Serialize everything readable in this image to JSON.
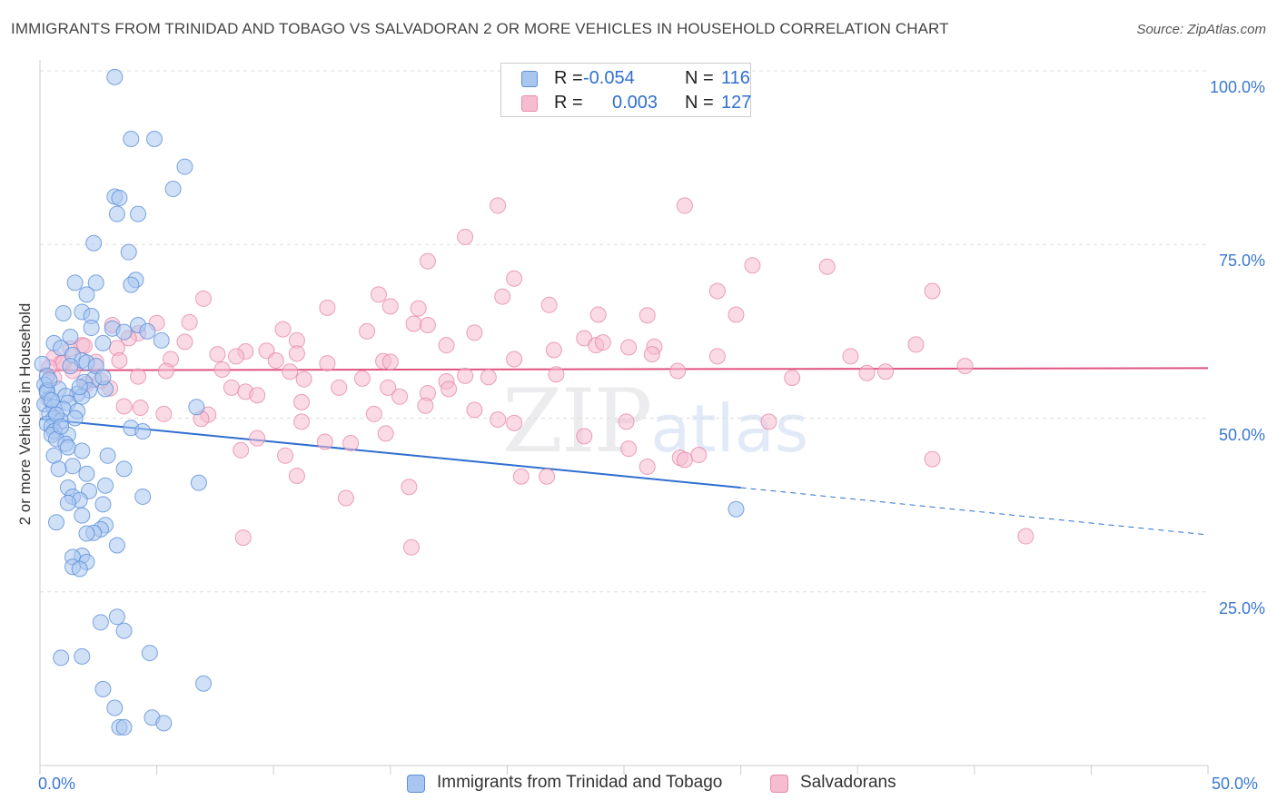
{
  "title": "IMMIGRANTS FROM TRINIDAD AND TOBAGO VS SALVADORAN 2 OR MORE VEHICLES IN HOUSEHOLD CORRELATION CHART",
  "source": "Source: ZipAtlas.com",
  "watermark": {
    "zip": "ZIP",
    "atlas": "atlas"
  },
  "legend": {
    "rows": [
      {
        "r_label": "R =",
        "r_value": "-0.054",
        "n_label": "N =",
        "n_value": "116"
      },
      {
        "r_label": "R =",
        "r_value": "0.003",
        "n_label": "N =",
        "n_value": "127"
      }
    ],
    "bottom": [
      "Immigrants from Trinidad and Tobago",
      "Salvadorans"
    ]
  },
  "colors": {
    "series1_fill": "#a9c6f0",
    "series1_stroke": "#5b8fd8",
    "series1_line": "#2f6fd0",
    "series2_fill": "#f6bcd0",
    "series2_stroke": "#e68aab",
    "series2_line": "#e0537f",
    "grid": "#dddddd",
    "tick_text": "#3a78d0"
  },
  "chart_data": {
    "type": "scatter",
    "title": "IMMIGRANTS FROM TRINIDAD AND TOBAGO VS SALVADORAN 2 OR MORE VEHICLES IN HOUSEHOLD CORRELATION CHART",
    "xlabel": "",
    "ylabel": "2 or more Vehicles in Household",
    "xlim": [
      0,
      50
    ],
    "ylim": [
      0,
      100
    ],
    "x_tick_labels": [
      "0.0%",
      "50.0%"
    ],
    "y_tick_labels": [
      "100.0%",
      "75.0%",
      "50.0%",
      "25.0%"
    ],
    "y_tick_values": [
      100,
      75,
      50,
      25
    ],
    "grid": true,
    "series": [
      {
        "name": "Immigrants from Trinidad and Tobago",
        "r": -0.054,
        "n": 116,
        "trend": {
          "x0": 0,
          "y0": 49.9,
          "x1": 30,
          "y1": 40.0,
          "dashed_to_x": 50,
          "dashed_to_y": 33.2
        },
        "points": [
          [
            3.2,
            99.1
          ],
          [
            3.9,
            90.2
          ],
          [
            4.9,
            90.2
          ],
          [
            6.2,
            86.2
          ],
          [
            5.7,
            83.0
          ],
          [
            3.2,
            81.9
          ],
          [
            3.4,
            81.7
          ],
          [
            3.3,
            79.4
          ],
          [
            4.2,
            79.4
          ],
          [
            2.3,
            75.2
          ],
          [
            3.8,
            73.9
          ],
          [
            4.1,
            69.9
          ],
          [
            3.9,
            69.2
          ],
          [
            1.5,
            69.5
          ],
          [
            2.4,
            69.5
          ],
          [
            2.0,
            67.8
          ],
          [
            1.0,
            65.1
          ],
          [
            1.8,
            65.3
          ],
          [
            2.2,
            64.7
          ],
          [
            2.2,
            63.0
          ],
          [
            4.2,
            63.4
          ],
          [
            3.1,
            62.9
          ],
          [
            4.6,
            62.5
          ],
          [
            3.6,
            62.4
          ],
          [
            0.6,
            60.8
          ],
          [
            1.3,
            61.7
          ],
          [
            5.2,
            61.2
          ],
          [
            2.7,
            60.8
          ],
          [
            0.9,
            60.1
          ],
          [
            1.4,
            59.1
          ],
          [
            1.8,
            58.3
          ],
          [
            2.0,
            58.0
          ],
          [
            1.3,
            57.5
          ],
          [
            0.1,
            57.8
          ],
          [
            0.3,
            56.1
          ],
          [
            2.3,
            55.6
          ],
          [
            1.9,
            55.2
          ],
          [
            0.2,
            54.8
          ],
          [
            2.8,
            54.2
          ],
          [
            2.1,
            54.0
          ],
          [
            0.8,
            54.2
          ],
          [
            0.3,
            54.0
          ],
          [
            1.6,
            53.5
          ],
          [
            1.1,
            53.2
          ],
          [
            1.8,
            53.1
          ],
          [
            0.4,
            52.7
          ],
          [
            1.2,
            52.2
          ],
          [
            0.2,
            52.0
          ],
          [
            0.6,
            51.6
          ],
          [
            6.7,
            51.6
          ],
          [
            1.0,
            51.3
          ],
          [
            1.6,
            51.0
          ],
          [
            0.4,
            50.6
          ],
          [
            0.6,
            50.0
          ],
          [
            0.9,
            49.6
          ],
          [
            0.3,
            49.2
          ],
          [
            0.5,
            48.8
          ],
          [
            3.9,
            48.6
          ],
          [
            0.6,
            48.1
          ],
          [
            4.4,
            48.1
          ],
          [
            1.2,
            47.6
          ],
          [
            0.5,
            47.6
          ],
          [
            0.7,
            47.0
          ],
          [
            1.1,
            46.3
          ],
          [
            1.2,
            45.8
          ],
          [
            1.8,
            45.3
          ],
          [
            2.9,
            44.6
          ],
          [
            0.6,
            44.6
          ],
          [
            1.4,
            43.1
          ],
          [
            0.8,
            42.7
          ],
          [
            3.6,
            42.7
          ],
          [
            2.0,
            42.0
          ],
          [
            6.8,
            40.7
          ],
          [
            2.8,
            40.3
          ],
          [
            1.2,
            40.0
          ],
          [
            2.1,
            39.5
          ],
          [
            1.4,
            38.7
          ],
          [
            4.4,
            38.7
          ],
          [
            1.7,
            38.2
          ],
          [
            1.2,
            37.8
          ],
          [
            2.7,
            37.6
          ],
          [
            29.8,
            36.9
          ],
          [
            1.8,
            36.0
          ],
          [
            0.7,
            35.0
          ],
          [
            2.8,
            34.6
          ],
          [
            2.6,
            34.0
          ],
          [
            2.3,
            33.5
          ],
          [
            2.0,
            33.4
          ],
          [
            3.3,
            31.7
          ],
          [
            1.8,
            30.2
          ],
          [
            1.4,
            30.0
          ],
          [
            2.0,
            29.3
          ],
          [
            1.4,
            28.6
          ],
          [
            1.7,
            28.3
          ],
          [
            3.3,
            21.4
          ],
          [
            2.6,
            20.6
          ],
          [
            3.6,
            19.4
          ],
          [
            4.7,
            16.2
          ],
          [
            0.9,
            15.5
          ],
          [
            1.8,
            15.7
          ],
          [
            7.0,
            11.8
          ],
          [
            2.7,
            11.0
          ],
          [
            3.2,
            8.3
          ],
          [
            4.8,
            6.9
          ],
          [
            5.3,
            6.1
          ],
          [
            3.4,
            5.5
          ],
          [
            3.6,
            5.5
          ],
          [
            0.3,
            53.7
          ],
          [
            0.5,
            52.6
          ],
          [
            0.7,
            50.5
          ],
          [
            1.5,
            50.0
          ],
          [
            0.9,
            48.8
          ],
          [
            1.7,
            54.5
          ],
          [
            2.4,
            57.5
          ],
          [
            0.4,
            55.5
          ],
          [
            2.7,
            55.9
          ]
        ]
      },
      {
        "name": "Salvadorans",
        "r": 0.003,
        "n": 127,
        "trend": {
          "x0": 0,
          "y0": 56.9,
          "x1": 50,
          "y1": 57.2
        },
        "points": [
          [
            19.6,
            80.6
          ],
          [
            27.6,
            80.6
          ],
          [
            18.2,
            76.1
          ],
          [
            16.6,
            72.6
          ],
          [
            30.5,
            72.0
          ],
          [
            33.7,
            71.8
          ],
          [
            20.3,
            70.1
          ],
          [
            7.0,
            67.2
          ],
          [
            14.5,
            67.8
          ],
          [
            19.8,
            67.5
          ],
          [
            29.0,
            68.3
          ],
          [
            38.2,
            68.3
          ],
          [
            12.3,
            65.9
          ],
          [
            15.0,
            66.1
          ],
          [
            16.2,
            65.8
          ],
          [
            21.8,
            66.3
          ],
          [
            23.9,
            64.9
          ],
          [
            26.0,
            64.8
          ],
          [
            29.8,
            64.9
          ],
          [
            6.4,
            63.8
          ],
          [
            3.1,
            63.4
          ],
          [
            5.0,
            63.7
          ],
          [
            16.0,
            63.6
          ],
          [
            16.6,
            63.4
          ],
          [
            10.4,
            62.8
          ],
          [
            14.0,
            62.5
          ],
          [
            18.6,
            62.3
          ],
          [
            4.2,
            62.2
          ],
          [
            3.8,
            61.5
          ],
          [
            23.3,
            61.5
          ],
          [
            1.8,
            60.5
          ],
          [
            1.3,
            60.0
          ],
          [
            6.2,
            61.0
          ],
          [
            11.0,
            61.2
          ],
          [
            17.4,
            60.5
          ],
          [
            23.8,
            60.5
          ],
          [
            24.1,
            60.9
          ],
          [
            25.2,
            60.2
          ],
          [
            26.3,
            60.3
          ],
          [
            37.5,
            60.6
          ],
          [
            3.3,
            60.1
          ],
          [
            8.8,
            59.6
          ],
          [
            9.7,
            59.7
          ],
          [
            11.0,
            59.3
          ],
          [
            22.0,
            59.8
          ],
          [
            0.6,
            58.7
          ],
          [
            8.4,
            58.9
          ],
          [
            2.4,
            58.1
          ],
          [
            3.4,
            58.3
          ],
          [
            5.6,
            58.5
          ],
          [
            7.6,
            59.2
          ],
          [
            10.1,
            58.3
          ],
          [
            12.3,
            57.9
          ],
          [
            14.7,
            58.2
          ],
          [
            15.0,
            58.1
          ],
          [
            20.3,
            58.5
          ],
          [
            26.2,
            59.2
          ],
          [
            29.0,
            58.9
          ],
          [
            34.7,
            58.9
          ],
          [
            0.9,
            57.9
          ],
          [
            1.4,
            56.8
          ],
          [
            4.2,
            56.0
          ],
          [
            5.4,
            56.8
          ],
          [
            7.8,
            57.0
          ],
          [
            10.7,
            56.7
          ],
          [
            18.2,
            56.1
          ],
          [
            19.2,
            55.9
          ],
          [
            22.1,
            56.3
          ],
          [
            27.3,
            56.8
          ],
          [
            35.4,
            56.5
          ],
          [
            39.6,
            57.5
          ],
          [
            0.6,
            55.8
          ],
          [
            11.3,
            55.6
          ],
          [
            13.8,
            55.7
          ],
          [
            17.4,
            55.3
          ],
          [
            32.2,
            55.8
          ],
          [
            36.2,
            56.7
          ],
          [
            2.0,
            54.9
          ],
          [
            3.0,
            54.3
          ],
          [
            8.2,
            54.4
          ],
          [
            8.8,
            53.8
          ],
          [
            12.8,
            54.4
          ],
          [
            14.9,
            54.4
          ],
          [
            17.5,
            54.2
          ],
          [
            9.3,
            53.3
          ],
          [
            15.4,
            53.1
          ],
          [
            16.6,
            53.6
          ],
          [
            11.2,
            52.3
          ],
          [
            16.5,
            51.8
          ],
          [
            4.3,
            51.5
          ],
          [
            18.6,
            51.2
          ],
          [
            5.3,
            50.6
          ],
          [
            14.3,
            50.6
          ],
          [
            7.2,
            50.5
          ],
          [
            6.9,
            49.9
          ],
          [
            11.2,
            49.5
          ],
          [
            19.6,
            49.8
          ],
          [
            25.1,
            49.5
          ],
          [
            31.2,
            49.5
          ],
          [
            3.6,
            51.7
          ],
          [
            20.3,
            49.3
          ],
          [
            14.8,
            47.8
          ],
          [
            23.3,
            47.4
          ],
          [
            9.3,
            47.1
          ],
          [
            12.2,
            46.6
          ],
          [
            13.3,
            46.4
          ],
          [
            8.6,
            45.4
          ],
          [
            25.2,
            45.6
          ],
          [
            10.5,
            44.6
          ],
          [
            27.4,
            44.3
          ],
          [
            28.2,
            44.7
          ],
          [
            27.6,
            44.0
          ],
          [
            38.2,
            44.1
          ],
          [
            26.0,
            43.0
          ],
          [
            11.0,
            41.7
          ],
          [
            20.6,
            41.6
          ],
          [
            21.7,
            41.6
          ],
          [
            15.8,
            40.1
          ],
          [
            13.1,
            38.5
          ],
          [
            8.7,
            32.8
          ],
          [
            15.9,
            31.4
          ],
          [
            42.2,
            33.0
          ],
          [
            1.0,
            58.0
          ],
          [
            2.6,
            55.4
          ],
          [
            0.4,
            57.3
          ],
          [
            1.9,
            60.4
          ]
        ]
      }
    ]
  }
}
